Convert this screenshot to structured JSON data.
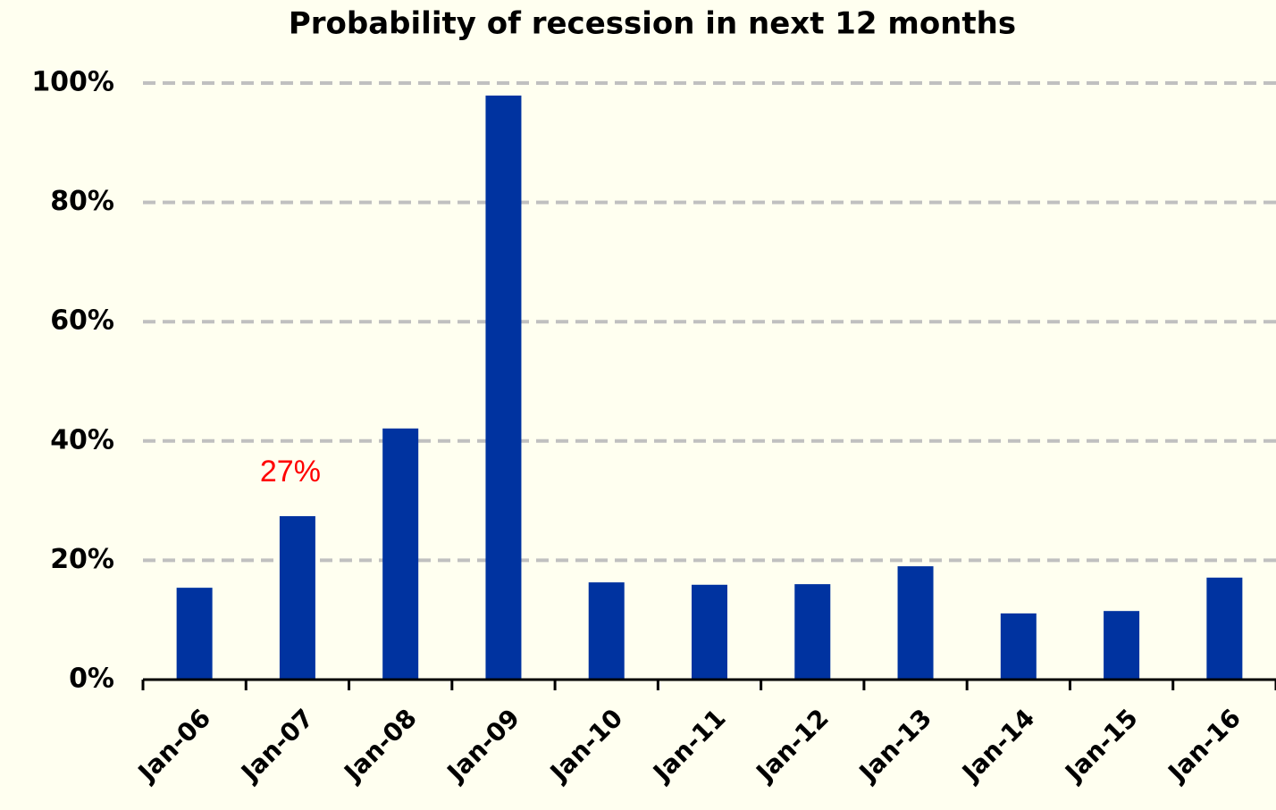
{
  "chart_data": {
    "type": "bar",
    "title": "Probability of recession in next 12 months",
    "categories": [
      "Jan-06",
      "Jan-07",
      "Jan-08",
      "Jan-09",
      "Jan-10",
      "Jan-11",
      "Jan-12",
      "Jan-13",
      "Jan-14",
      "Jan-15",
      "Jan-16"
    ],
    "values": [
      15.4,
      27.4,
      42.1,
      97.9,
      16.3,
      15.9,
      16.0,
      19.0,
      11.1,
      11.5,
      17.1
    ],
    "value_labels": [
      null,
      "27%",
      null,
      null,
      null,
      null,
      null,
      null,
      null,
      null,
      null
    ],
    "value_label_color": "#ff0000",
    "color": "#0033a0",
    "ylim": [
      0,
      100
    ],
    "yticks": [
      {
        "value": 0,
        "label": "0%"
      },
      {
        "value": 20,
        "label": "20%"
      },
      {
        "value": 40,
        "label": "40%"
      },
      {
        "value": 60,
        "label": "60%"
      },
      {
        "value": 80,
        "label": "80%"
      },
      {
        "value": 100,
        "label": "100%"
      }
    ],
    "grid": true
  }
}
